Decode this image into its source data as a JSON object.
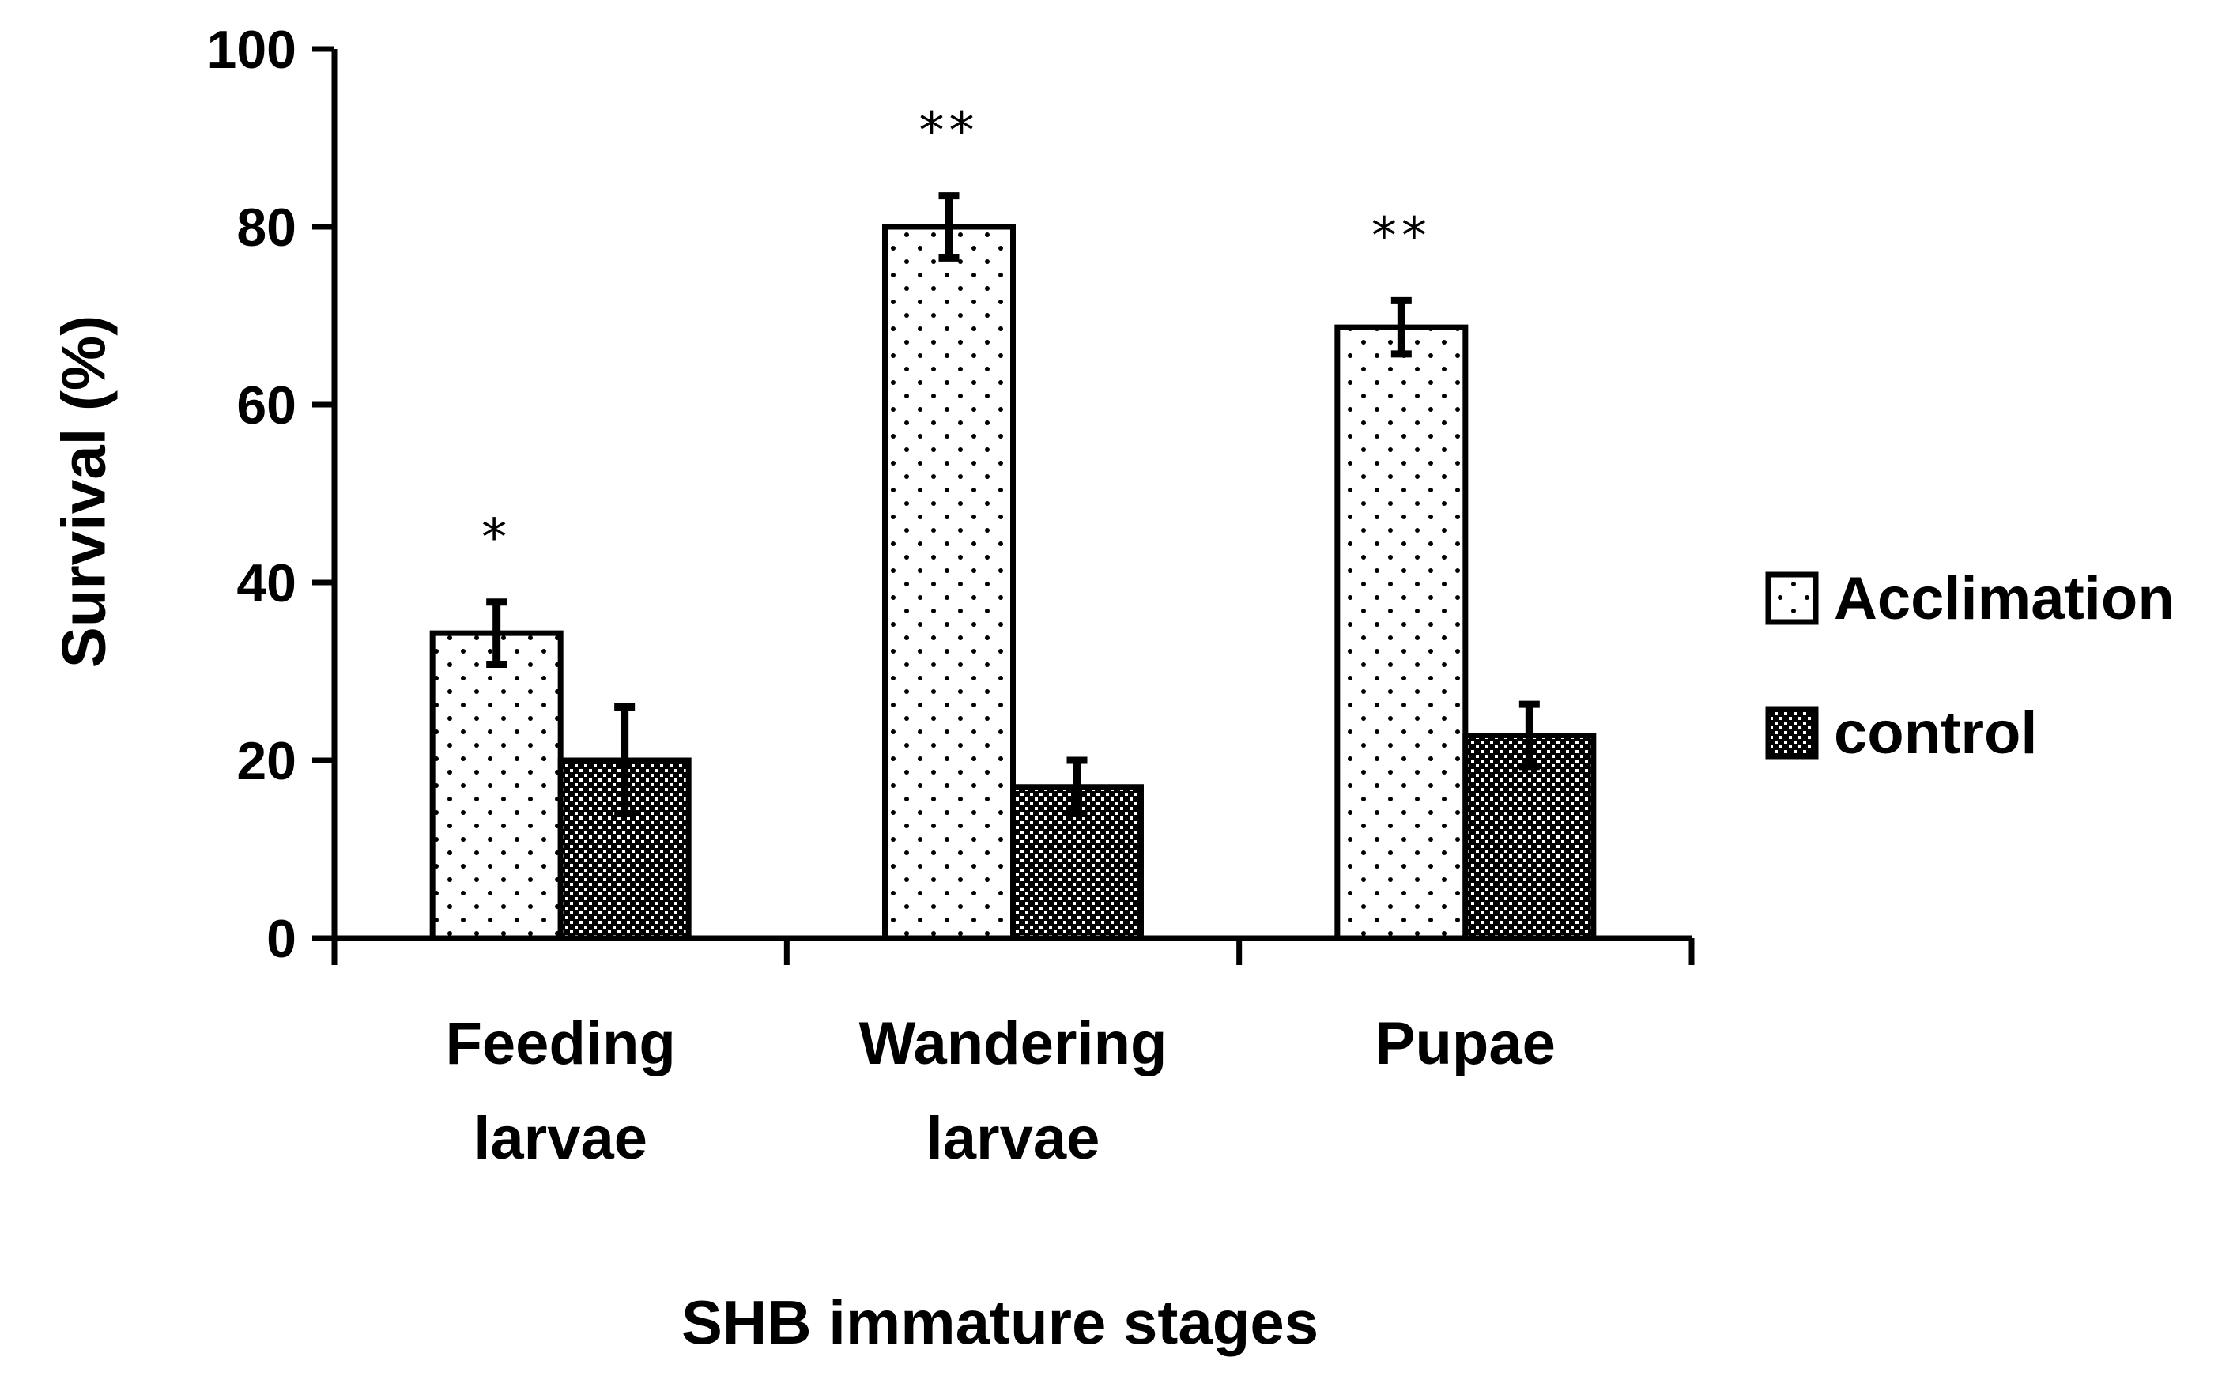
{
  "chart_data": {
    "type": "bar",
    "title": "",
    "xlabel": "SHB immature stages",
    "ylabel": "Survival (%)",
    "ylim": [
      0,
      100
    ],
    "yticks": [
      0,
      20,
      40,
      60,
      80,
      100
    ],
    "categories": [
      [
        "Feeding",
        "larvae"
      ],
      [
        "Wandering",
        "larvae"
      ],
      [
        "Pupae"
      ]
    ],
    "series": [
      {
        "name": "Acclimation",
        "pattern": "dots",
        "values": [
          34.3,
          80,
          68.7
        ],
        "errors": [
          3.5,
          3.5,
          3
        ]
      },
      {
        "name": "control",
        "pattern": "checker",
        "values": [
          20,
          17,
          22.8
        ],
        "errors": [
          6,
          3,
          3.5
        ]
      }
    ],
    "significance": [
      "*",
      "**",
      "**"
    ],
    "legend_position": "right",
    "colors": {
      "stroke": "#000000",
      "background": "#ffffff"
    }
  }
}
